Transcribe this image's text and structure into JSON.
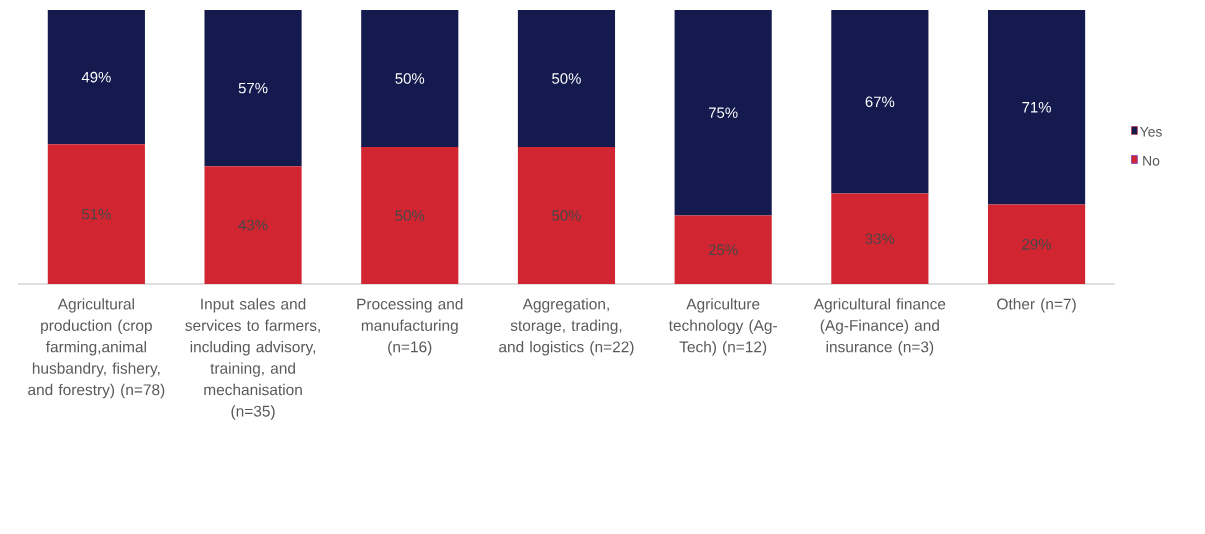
{
  "chart_data": {
    "type": "bar",
    "stacked": true,
    "tick_labels": "x",
    "legend": "right",
    "categories": [
      "Agricultural production (crop farming,animal husbandry, fishery, and forestry) (n=78)",
      "Input sales and services to farmers, including advisory, training, and mechanisation (n=35)",
      "Processing and manufacturing (n=16)",
      "Aggregation, storage, trading, and logistics (n=22)",
      "Agriculture technology (Ag-Tech) (n=12)",
      "Agricultural finance (Ag-Finance) and insurance (n=3)",
      "Other (n=7)"
    ],
    "series": [
      {
        "name": "No",
        "color": "#d12631",
        "values": [
          51,
          43,
          50,
          50,
          25,
          33,
          29
        ],
        "value_labels": [
          "51%",
          "43%",
          "50%",
          "50%",
          "25%",
          "33%",
          "29%"
        ]
      },
      {
        "name": "Yes",
        "color": "#141a4d",
        "values": [
          49,
          57,
          50,
          50,
          75,
          67,
          71
        ],
        "value_labels": [
          "49%",
          "57%",
          "50%",
          "50%",
          "75%",
          "67%",
          "71%"
        ]
      }
    ]
  }
}
